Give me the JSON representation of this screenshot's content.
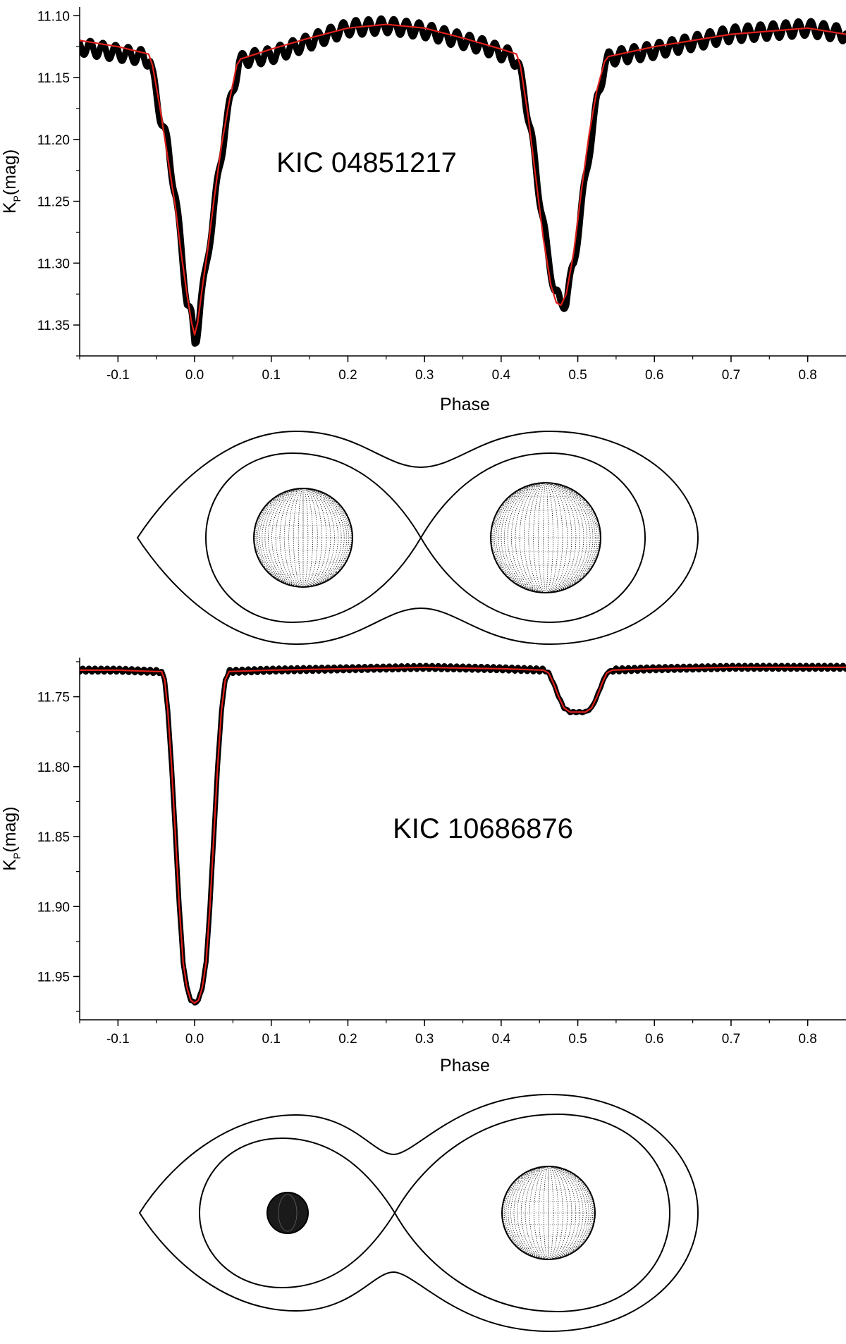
{
  "colors": {
    "observed": "#000000",
    "model": "#e0201b",
    "axis": "#000000"
  },
  "chart_data": [
    {
      "type": "line",
      "annotation": "KIC 04851217",
      "xlabel": "Phase",
      "ylabel": "K",
      "ylabel_sub": "P",
      "ylabel_unit": "(mag)",
      "xlim": [
        -0.15,
        0.85
      ],
      "ylim": [
        11.375,
        11.093
      ],
      "y_inverted": true,
      "x_ticks": [
        -0.1,
        0.0,
        0.1,
        0.2,
        0.3,
        0.4,
        0.5,
        0.6,
        0.7,
        0.8
      ],
      "x_tick_labels": [
        "-0.1",
        "0.0",
        "0.1",
        "0.2",
        "0.3",
        "0.4",
        "0.5",
        "0.6",
        "0.7",
        "0.8"
      ],
      "y_ticks": [
        11.1,
        11.15,
        11.2,
        11.25,
        11.3,
        11.35
      ],
      "y_tick_labels": [
        "11.10",
        "11.15",
        "11.20",
        "11.25",
        "11.30",
        "11.35"
      ],
      "series": [
        {
          "role": "observed",
          "oscillation_amplitude": 0.006,
          "oscillation_period": 0.0165,
          "x": [
            -0.15,
            -0.1,
            -0.07,
            -0.058,
            -0.055,
            -0.045,
            -0.035,
            -0.025,
            -0.018,
            -0.01,
            -0.004,
            0.0,
            0.003,
            0.008,
            0.014,
            0.02,
            0.03,
            0.04,
            0.05,
            0.058,
            0.065,
            0.1,
            0.2,
            0.25,
            0.3,
            0.35,
            0.38,
            0.4,
            0.415,
            0.422,
            0.43,
            0.44,
            0.45,
            0.46,
            0.47,
            0.477,
            0.485,
            0.495,
            0.505,
            0.515,
            0.525,
            0.535,
            0.54,
            0.55,
            0.6,
            0.7,
            0.8,
            0.85
          ],
          "y": [
            11.125,
            11.13,
            11.133,
            11.136,
            11.148,
            11.18,
            11.205,
            11.245,
            11.285,
            11.33,
            11.345,
            11.365,
            11.358,
            11.33,
            11.31,
            11.28,
            11.235,
            11.19,
            11.16,
            11.138,
            11.135,
            11.132,
            11.11,
            11.108,
            11.112,
            11.12,
            11.125,
            11.13,
            11.133,
            11.14,
            11.16,
            11.2,
            11.245,
            11.29,
            11.322,
            11.333,
            11.33,
            11.3,
            11.255,
            11.21,
            11.17,
            11.14,
            11.135,
            11.133,
            11.128,
            11.115,
            11.11,
            11.115
          ]
        },
        {
          "role": "model",
          "x": [
            -0.15,
            -0.1,
            -0.06,
            -0.055,
            -0.045,
            -0.035,
            -0.025,
            -0.018,
            -0.01,
            -0.004,
            0.0,
            0.004,
            0.01,
            0.018,
            0.025,
            0.035,
            0.045,
            0.055,
            0.06,
            0.1,
            0.15,
            0.2,
            0.25,
            0.3,
            0.35,
            0.4,
            0.42,
            0.425,
            0.435,
            0.445,
            0.455,
            0.465,
            0.472,
            0.478,
            0.485,
            0.495,
            0.505,
            0.515,
            0.525,
            0.535,
            0.54,
            0.6,
            0.7,
            0.8,
            0.85
          ],
          "y": [
            11.12,
            11.125,
            11.131,
            11.14,
            11.175,
            11.215,
            11.255,
            11.29,
            11.325,
            11.348,
            11.358,
            11.348,
            11.32,
            11.285,
            11.25,
            11.205,
            11.17,
            11.14,
            11.135,
            11.127,
            11.118,
            11.11,
            11.107,
            11.11,
            11.118,
            11.127,
            11.131,
            11.14,
            11.18,
            11.23,
            11.28,
            11.318,
            11.332,
            11.334,
            11.325,
            11.29,
            11.24,
            11.195,
            11.16,
            11.137,
            11.133,
            11.125,
            11.115,
            11.11,
            11.115
          ]
        }
      ]
    },
    {
      "type": "line",
      "annotation": "KIC 10686876",
      "xlabel": "Phase",
      "ylabel": "K",
      "ylabel_sub": "P",
      "ylabel_unit": "(mag)",
      "xlim": [
        -0.15,
        0.85
      ],
      "ylim": [
        11.981,
        11.722
      ],
      "y_inverted": true,
      "x_ticks": [
        -0.1,
        0.0,
        0.1,
        0.2,
        0.3,
        0.4,
        0.5,
        0.6,
        0.7,
        0.8
      ],
      "x_tick_labels": [
        "-0.1",
        "0.0",
        "0.1",
        "0.2",
        "0.3",
        "0.4",
        "0.5",
        "0.6",
        "0.7",
        "0.8"
      ],
      "y_ticks": [
        11.75,
        11.8,
        11.85,
        11.9,
        11.95
      ],
      "y_tick_labels": [
        "11.75",
        "11.80",
        "11.85",
        "11.90",
        "11.95"
      ],
      "series": [
        {
          "role": "observed",
          "oscillation_amplitude": 0.0015,
          "oscillation_period": 0.008,
          "x": [
            -0.15,
            -0.1,
            -0.05,
            -0.043,
            -0.039,
            -0.035,
            -0.03,
            -0.025,
            -0.02,
            -0.015,
            -0.01,
            -0.005,
            0.0,
            0.005,
            0.01,
            0.015,
            0.02,
            0.025,
            0.03,
            0.035,
            0.04,
            0.045,
            0.1,
            0.2,
            0.3,
            0.4,
            0.455,
            0.462,
            0.468,
            0.475,
            0.482,
            0.49,
            0.51,
            0.518,
            0.525,
            0.532,
            0.538,
            0.545,
            0.6,
            0.7,
            0.8,
            0.85
          ],
          "y": [
            11.731,
            11.731,
            11.732,
            11.732,
            11.738,
            11.76,
            11.8,
            11.85,
            11.9,
            11.94,
            11.958,
            11.967,
            11.969,
            11.967,
            11.958,
            11.94,
            11.9,
            11.85,
            11.8,
            11.76,
            11.738,
            11.732,
            11.731,
            11.73,
            11.729,
            11.73,
            11.731,
            11.733,
            11.74,
            11.75,
            11.758,
            11.761,
            11.761,
            11.758,
            11.75,
            11.74,
            11.733,
            11.731,
            11.73,
            11.729,
            11.729,
            11.729
          ]
        },
        {
          "role": "model",
          "x": [
            -0.15,
            -0.1,
            -0.05,
            -0.043,
            -0.039,
            -0.035,
            -0.03,
            -0.025,
            -0.02,
            -0.015,
            -0.01,
            -0.005,
            0.0,
            0.005,
            0.01,
            0.015,
            0.02,
            0.025,
            0.03,
            0.035,
            0.04,
            0.045,
            0.1,
            0.2,
            0.3,
            0.4,
            0.455,
            0.462,
            0.468,
            0.475,
            0.482,
            0.49,
            0.51,
            0.518,
            0.525,
            0.532,
            0.538,
            0.545,
            0.6,
            0.7,
            0.8,
            0.85
          ],
          "y": [
            11.731,
            11.731,
            11.732,
            11.732,
            11.738,
            11.76,
            11.8,
            11.85,
            11.9,
            11.94,
            11.958,
            11.967,
            11.969,
            11.967,
            11.958,
            11.94,
            11.9,
            11.85,
            11.8,
            11.76,
            11.738,
            11.732,
            11.731,
            11.73,
            11.729,
            11.73,
            11.731,
            11.733,
            11.74,
            11.75,
            11.758,
            11.761,
            11.761,
            11.758,
            11.75,
            11.74,
            11.733,
            11.731,
            11.73,
            11.729,
            11.729,
            11.729
          ]
        }
      ]
    }
  ]
}
